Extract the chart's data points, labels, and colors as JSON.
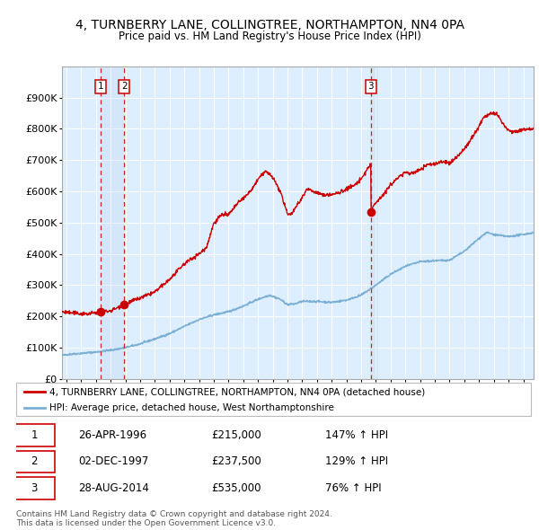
{
  "title": "4, TURNBERRY LANE, COLLINGTREE, NORTHAMPTON, NN4 0PA",
  "subtitle": "Price paid vs. HM Land Registry's House Price Index (HPI)",
  "ylim": [
    0,
    1000000
  ],
  "yticks": [
    0,
    100000,
    200000,
    300000,
    400000,
    500000,
    600000,
    700000,
    800000,
    900000
  ],
  "ytick_labels": [
    "£0",
    "£100K",
    "£200K",
    "£300K",
    "£400K",
    "£500K",
    "£600K",
    "£700K",
    "£800K",
    "£900K"
  ],
  "xlim_start": 1993.7,
  "xlim_end": 2025.7,
  "sale_dates": [
    1996.32,
    1997.92,
    2014.66
  ],
  "sale_prices": [
    215000,
    237500,
    535000
  ],
  "sale_labels": [
    "1",
    "2",
    "3"
  ],
  "red_color": "#cc0000",
  "blue_color": "#7bafd4",
  "background_color": "#ddeeff",
  "grid_color": "#ffffff",
  "legend_label_red": "4, TURNBERRY LANE, COLLINGTREE, NORTHAMPTON, NN4 0PA (detached house)",
  "legend_label_blue": "HPI: Average price, detached house, West Northamptonshire",
  "table_rows": [
    {
      "label": "1",
      "date": "26-APR-1996",
      "price": "£215,000",
      "hpi": "147% ↑ HPI"
    },
    {
      "label": "2",
      "date": "02-DEC-1997",
      "price": "£237,500",
      "hpi": "129% ↑ HPI"
    },
    {
      "label": "3",
      "date": "28-AUG-2014",
      "price": "£535,000",
      "hpi": "76% ↑ HPI"
    }
  ],
  "footer": "Contains HM Land Registry data © Crown copyright and database right 2024.\nThis data is licensed under the Open Government Licence v3.0."
}
